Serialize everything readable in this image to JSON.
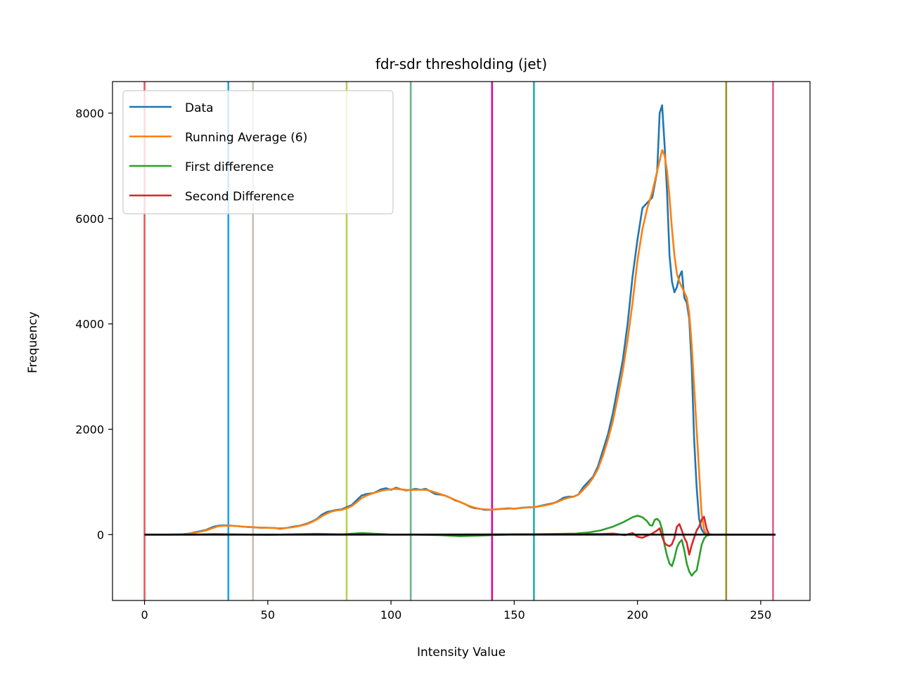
{
  "chart_data": {
    "type": "line",
    "title": "fdr-sdr thresholding (jet)",
    "xlabel": "Intensity Value",
    "ylabel": "Frequency",
    "xlim": [
      -13,
      270
    ],
    "ylim": [
      -1250,
      8600
    ],
    "xticks": [
      0,
      50,
      100,
      150,
      200,
      250
    ],
    "yticks": [
      0,
      2000,
      4000,
      6000,
      8000
    ],
    "grid": false,
    "legend_position": "upper-left",
    "series": [
      {
        "name": "Data",
        "color": "#1f77b4",
        "points": [
          [
            0,
            0
          ],
          [
            10,
            0
          ],
          [
            15,
            5
          ],
          [
            18,
            20
          ],
          [
            20,
            40
          ],
          [
            22,
            60
          ],
          [
            25,
            90
          ],
          [
            28,
            150
          ],
          [
            30,
            170
          ],
          [
            33,
            175
          ],
          [
            35,
            170
          ],
          [
            38,
            160
          ],
          [
            40,
            150
          ],
          [
            44,
            140
          ],
          [
            47,
            130
          ],
          [
            50,
            130
          ],
          [
            53,
            125
          ],
          [
            55,
            110
          ],
          [
            58,
            130
          ],
          [
            60,
            150
          ],
          [
            63,
            170
          ],
          [
            66,
            210
          ],
          [
            68,
            250
          ],
          [
            70,
            300
          ],
          [
            72,
            380
          ],
          [
            74,
            430
          ],
          [
            76,
            450
          ],
          [
            78,
            470
          ],
          [
            80,
            480
          ],
          [
            82,
            520
          ],
          [
            84,
            560
          ],
          [
            86,
            650
          ],
          [
            88,
            740
          ],
          [
            90,
            770
          ],
          [
            93,
            790
          ],
          [
            96,
            860
          ],
          [
            98,
            880
          ],
          [
            100,
            850
          ],
          [
            102,
            890
          ],
          [
            104,
            860
          ],
          [
            106,
            840
          ],
          [
            108,
            850
          ],
          [
            110,
            870
          ],
          [
            112,
            850
          ],
          [
            114,
            870
          ],
          [
            116,
            820
          ],
          [
            118,
            770
          ],
          [
            120,
            760
          ],
          [
            122,
            740
          ],
          [
            124,
            700
          ],
          [
            126,
            650
          ],
          [
            128,
            620
          ],
          [
            130,
            580
          ],
          [
            132,
            530
          ],
          [
            134,
            500
          ],
          [
            136,
            490
          ],
          [
            138,
            470
          ],
          [
            140,
            470
          ],
          [
            142,
            480
          ],
          [
            145,
            490
          ],
          [
            148,
            500
          ],
          [
            150,
            490
          ],
          [
            153,
            510
          ],
          [
            156,
            520
          ],
          [
            158,
            520
          ],
          [
            160,
            540
          ],
          [
            162,
            560
          ],
          [
            164,
            580
          ],
          [
            166,
            600
          ],
          [
            168,
            640
          ],
          [
            170,
            700
          ],
          [
            172,
            720
          ],
          [
            174,
            720
          ],
          [
            176,
            760
          ],
          [
            178,
            900
          ],
          [
            180,
            1000
          ],
          [
            182,
            1100
          ],
          [
            184,
            1300
          ],
          [
            186,
            1600
          ],
          [
            188,
            1900
          ],
          [
            190,
            2300
          ],
          [
            192,
            2800
          ],
          [
            194,
            3300
          ],
          [
            196,
            4000
          ],
          [
            198,
            4900
          ],
          [
            200,
            5600
          ],
          [
            202,
            6200
          ],
          [
            203,
            6250
          ],
          [
            204,
            6300
          ],
          [
            206,
            6400
          ],
          [
            208,
            6900
          ],
          [
            209,
            8000
          ],
          [
            210,
            8150
          ],
          [
            211,
            7400
          ],
          [
            212,
            6500
          ],
          [
            213,
            5300
          ],
          [
            214,
            4800
          ],
          [
            215,
            4600
          ],
          [
            216,
            4700
          ],
          [
            217,
            4900
          ],
          [
            218,
            5000
          ],
          [
            219,
            4500
          ],
          [
            220,
            4400
          ],
          [
            221,
            4100
          ],
          [
            222,
            3200
          ],
          [
            223,
            1800
          ],
          [
            224,
            900
          ],
          [
            225,
            300
          ],
          [
            226,
            100
          ],
          [
            227,
            30
          ],
          [
            228,
            10
          ],
          [
            230,
            0
          ],
          [
            256,
            0
          ]
        ]
      },
      {
        "name": "Running Average (6)",
        "color": "#ff7f0e",
        "points": [
          [
            0,
            0
          ],
          [
            10,
            0
          ],
          [
            15,
            5
          ],
          [
            18,
            15
          ],
          [
            20,
            30
          ],
          [
            22,
            50
          ],
          [
            25,
            80
          ],
          [
            28,
            130
          ],
          [
            30,
            160
          ],
          [
            33,
            170
          ],
          [
            35,
            168
          ],
          [
            38,
            160
          ],
          [
            40,
            150
          ],
          [
            44,
            140
          ],
          [
            47,
            133
          ],
          [
            50,
            128
          ],
          [
            53,
            123
          ],
          [
            55,
            120
          ],
          [
            58,
            128
          ],
          [
            60,
            140
          ],
          [
            63,
            165
          ],
          [
            66,
            200
          ],
          [
            68,
            240
          ],
          [
            70,
            290
          ],
          [
            72,
            350
          ],
          [
            74,
            400
          ],
          [
            76,
            440
          ],
          [
            78,
            460
          ],
          [
            80,
            470
          ],
          [
            82,
            500
          ],
          [
            84,
            540
          ],
          [
            86,
            610
          ],
          [
            88,
            690
          ],
          [
            90,
            740
          ],
          [
            93,
            790
          ],
          [
            96,
            830
          ],
          [
            98,
            850
          ],
          [
            100,
            860
          ],
          [
            102,
            870
          ],
          [
            104,
            860
          ],
          [
            106,
            850
          ],
          [
            108,
            848
          ],
          [
            110,
            850
          ],
          [
            112,
            852
          ],
          [
            114,
            850
          ],
          [
            116,
            830
          ],
          [
            118,
            800
          ],
          [
            120,
            770
          ],
          [
            122,
            740
          ],
          [
            124,
            700
          ],
          [
            126,
            660
          ],
          [
            128,
            620
          ],
          [
            130,
            580
          ],
          [
            132,
            540
          ],
          [
            134,
            510
          ],
          [
            136,
            490
          ],
          [
            138,
            480
          ],
          [
            140,
            475
          ],
          [
            142,
            478
          ],
          [
            145,
            485
          ],
          [
            148,
            492
          ],
          [
            150,
            495
          ],
          [
            153,
            505
          ],
          [
            156,
            515
          ],
          [
            158,
            522
          ],
          [
            160,
            535
          ],
          [
            162,
            550
          ],
          [
            164,
            570
          ],
          [
            166,
            595
          ],
          [
            168,
            630
          ],
          [
            170,
            670
          ],
          [
            172,
            700
          ],
          [
            174,
            720
          ],
          [
            176,
            760
          ],
          [
            178,
            850
          ],
          [
            180,
            950
          ],
          [
            182,
            1080
          ],
          [
            184,
            1250
          ],
          [
            186,
            1500
          ],
          [
            188,
            1800
          ],
          [
            190,
            2150
          ],
          [
            192,
            2600
          ],
          [
            194,
            3100
          ],
          [
            196,
            3700
          ],
          [
            198,
            4400
          ],
          [
            200,
            5200
          ],
          [
            202,
            5800
          ],
          [
            204,
            6200
          ],
          [
            206,
            6500
          ],
          [
            208,
            6900
          ],
          [
            210,
            7300
          ],
          [
            211,
            7200
          ],
          [
            212,
            6900
          ],
          [
            213,
            6400
          ],
          [
            214,
            5800
          ],
          [
            215,
            5300
          ],
          [
            216,
            4950
          ],
          [
            217,
            4800
          ],
          [
            218,
            4700
          ],
          [
            219,
            4600
          ],
          [
            220,
            4500
          ],
          [
            221,
            4200
          ],
          [
            222,
            3600
          ],
          [
            223,
            2800
          ],
          [
            224,
            2000
          ],
          [
            225,
            1200
          ],
          [
            226,
            400
          ],
          [
            227,
            100
          ],
          [
            228,
            20
          ],
          [
            230,
            0
          ],
          [
            256,
            0
          ]
        ]
      },
      {
        "name": "First difference",
        "color": "#2ca02c",
        "points": [
          [
            0,
            0
          ],
          [
            20,
            0
          ],
          [
            28,
            10
          ],
          [
            35,
            5
          ],
          [
            50,
            -5
          ],
          [
            60,
            5
          ],
          [
            70,
            15
          ],
          [
            80,
            5
          ],
          [
            85,
            20
          ],
          [
            88,
            30
          ],
          [
            92,
            20
          ],
          [
            100,
            0
          ],
          [
            110,
            0
          ],
          [
            120,
            -10
          ],
          [
            128,
            -30
          ],
          [
            135,
            -20
          ],
          [
            150,
            5
          ],
          [
            165,
            10
          ],
          [
            175,
            20
          ],
          [
            180,
            40
          ],
          [
            185,
            80
          ],
          [
            190,
            150
          ],
          [
            194,
            230
          ],
          [
            196,
            280
          ],
          [
            198,
            330
          ],
          [
            200,
            360
          ],
          [
            202,
            330
          ],
          [
            204,
            250
          ],
          [
            205,
            180
          ],
          [
            206,
            170
          ],
          [
            207,
            280
          ],
          [
            208,
            300
          ],
          [
            209,
            250
          ],
          [
            210,
            100
          ],
          [
            211,
            -200
          ],
          [
            212,
            -400
          ],
          [
            213,
            -550
          ],
          [
            214,
            -600
          ],
          [
            215,
            -450
          ],
          [
            216,
            -250
          ],
          [
            217,
            -150
          ],
          [
            218,
            -100
          ],
          [
            219,
            -300
          ],
          [
            220,
            -550
          ],
          [
            221,
            -700
          ],
          [
            222,
            -780
          ],
          [
            223,
            -720
          ],
          [
            224,
            -680
          ],
          [
            225,
            -450
          ],
          [
            226,
            -200
          ],
          [
            227,
            -80
          ],
          [
            228,
            -20
          ],
          [
            230,
            0
          ],
          [
            256,
            0
          ]
        ]
      },
      {
        "name": "Second Difference",
        "color": "#d62728",
        "points": [
          [
            0,
            0
          ],
          [
            100,
            0
          ],
          [
            150,
            5
          ],
          [
            170,
            10
          ],
          [
            185,
            10
          ],
          [
            190,
            20
          ],
          [
            195,
            -10
          ],
          [
            198,
            30
          ],
          [
            200,
            -40
          ],
          [
            202,
            -60
          ],
          [
            204,
            -20
          ],
          [
            206,
            20
          ],
          [
            208,
            80
          ],
          [
            209,
            120
          ],
          [
            210,
            -40
          ],
          [
            211,
            -160
          ],
          [
            212,
            -200
          ],
          [
            213,
            -220
          ],
          [
            214,
            -180
          ],
          [
            215,
            -60
          ],
          [
            216,
            150
          ],
          [
            217,
            200
          ],
          [
            218,
            80
          ],
          [
            219,
            -60
          ],
          [
            220,
            -150
          ],
          [
            221,
            -380
          ],
          [
            222,
            -200
          ],
          [
            223,
            -60
          ],
          [
            224,
            80
          ],
          [
            225,
            150
          ],
          [
            226,
            280
          ],
          [
            227,
            340
          ],
          [
            228,
            120
          ],
          [
            229,
            10
          ],
          [
            230,
            0
          ],
          [
            256,
            0
          ]
        ]
      }
    ],
    "baseline": {
      "color": "#000000",
      "from": 0,
      "to": 256,
      "y": 0
    },
    "vertical_lines": [
      {
        "x": 0,
        "color": "#e8585a"
      },
      {
        "x": 34,
        "color": "#1aa7ee"
      },
      {
        "x": 44,
        "color": "#c4c0b6"
      },
      {
        "x": 82,
        "color": "#b2d450"
      },
      {
        "x": 108,
        "color": "#6cb58c"
      },
      {
        "x": 141,
        "color": "#e0088c"
      },
      {
        "x": 158,
        "color": "#22aeae"
      },
      {
        "x": 236,
        "color": "#a09024"
      },
      {
        "x": 255,
        "color": "#e06090"
      }
    ]
  }
}
